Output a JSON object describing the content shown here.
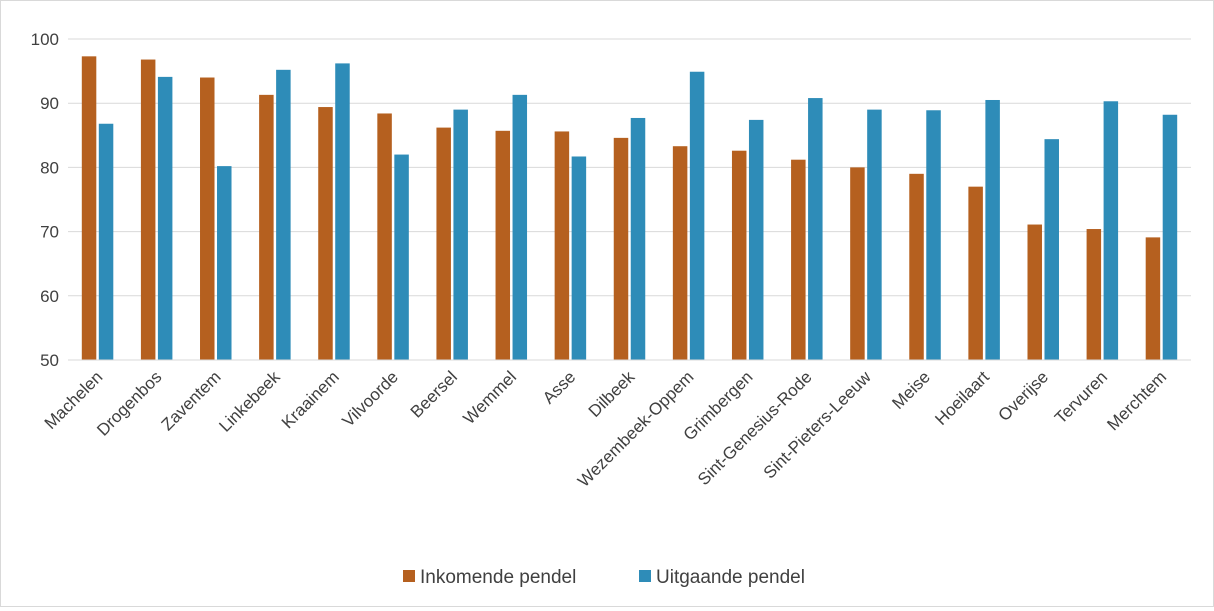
{
  "chart_data": {
    "type": "bar",
    "title": "",
    "xlabel": "",
    "ylabel": "",
    "ylim": [
      50,
      100
    ],
    "yticks": [
      50,
      60,
      70,
      80,
      90,
      100
    ],
    "grid": true,
    "legend_position": "bottom",
    "categories": [
      "Machelen",
      "Drogenbos",
      "Zaventem",
      "Linkebeek",
      "Kraainem",
      "Vilvoorde",
      "Beersel",
      "Wemmel",
      "Asse",
      "Dilbeek",
      "Wezembeek-Oppem",
      "Grimbergen",
      "Sint-Genesius-Rode",
      "Sint-Pieters-Leeuw",
      "Meise",
      "Hoeilaart",
      "Overijse",
      "Tervuren",
      "Merchtem"
    ],
    "series": [
      {
        "name": "Inkomende pendel",
        "color": "#b5601f",
        "values": [
          97.3,
          96.8,
          94.0,
          91.3,
          89.4,
          88.4,
          86.2,
          85.7,
          85.6,
          84.6,
          83.3,
          82.6,
          81.2,
          80.0,
          79.0,
          77.0,
          71.1,
          70.4,
          69.1
        ]
      },
      {
        "name": "Uitgaande pendel",
        "color": "#2e8cb8",
        "values": [
          86.8,
          94.1,
          80.2,
          95.2,
          96.2,
          82.0,
          89.0,
          91.3,
          81.7,
          87.7,
          94.9,
          87.4,
          90.8,
          89.0,
          88.9,
          90.5,
          84.4,
          90.3,
          88.2
        ]
      }
    ]
  }
}
